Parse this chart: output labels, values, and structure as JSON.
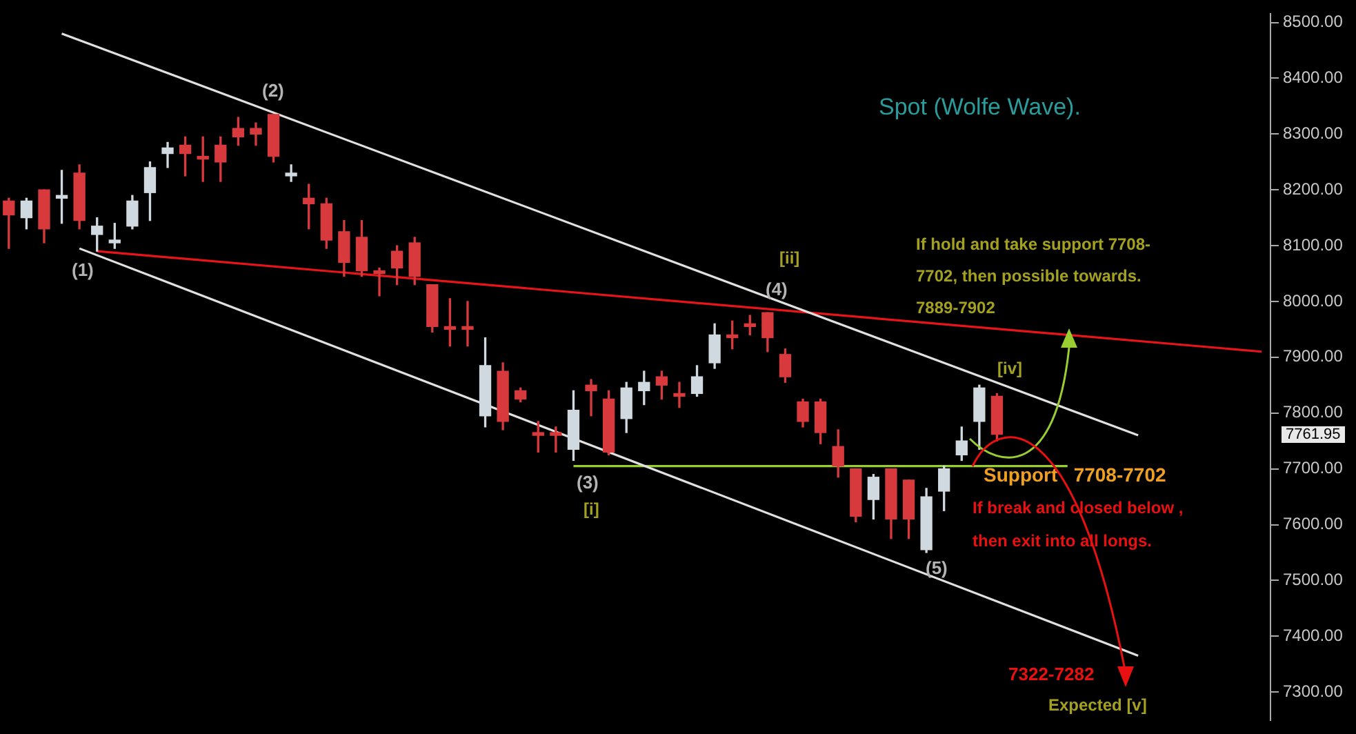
{
  "chart_data": {
    "type": "candlestick",
    "title": "Spot (Wolfe Wave).",
    "categories": [
      null,
      null,
      null,
      null,
      null,
      null,
      null,
      null,
      null,
      null,
      null,
      null,
      null,
      null,
      null,
      null,
      null,
      null,
      null,
      null,
      null,
      null,
      null,
      null,
      null,
      null,
      null,
      null,
      null,
      null,
      null,
      null,
      null,
      null,
      null,
      null,
      null,
      null,
      null,
      null,
      null,
      null,
      null,
      null,
      null,
      null,
      null,
      null,
      null,
      null,
      null,
      null,
      null,
      null,
      null,
      null,
      null,
      null,
      null,
      null,
      null,
      null,
      null,
      null,
      null,
      null,
      null,
      null,
      null,
      null,
      null,
      null
    ],
    "ohlc": [
      [
        8180,
        8185,
        8095,
        8155
      ],
      [
        8150,
        8185,
        8130,
        8180
      ],
      [
        8200,
        8200,
        8105,
        8130
      ],
      [
        8185,
        8235,
        8140,
        8190
      ],
      [
        8230,
        8245,
        8130,
        8145
      ],
      [
        8120,
        8150,
        8090,
        8135
      ],
      [
        8105,
        8140,
        8095,
        8110
      ],
      [
        8135,
        8190,
        8130,
        8180
      ],
      [
        8195,
        8250,
        8145,
        8240
      ],
      [
        8265,
        8285,
        8240,
        8275
      ],
      [
        8280,
        8295,
        8225,
        8265
      ],
      [
        8260,
        8295,
        8215,
        8255
      ],
      [
        8280,
        8295,
        8215,
        8250
      ],
      [
        8310,
        8330,
        8280,
        8295
      ],
      [
        8310,
        8320,
        8280,
        8300
      ],
      [
        8335,
        8335,
        8250,
        8260
      ],
      [
        8225,
        8245,
        8215,
        8230
      ],
      [
        8185,
        8210,
        8130,
        8175
      ],
      [
        8175,
        8185,
        8095,
        8110
      ],
      [
        8125,
        8145,
        8045,
        8070
      ],
      [
        8115,
        8145,
        8045,
        8055
      ],
      [
        8055,
        8060,
        8010,
        8050
      ],
      [
        8090,
        8100,
        8030,
        8060
      ],
      [
        8105,
        8115,
        8030,
        8045
      ],
      [
        8030,
        8030,
        7945,
        7955
      ],
      [
        7955,
        8005,
        7920,
        7950
      ],
      [
        7955,
        8000,
        7920,
        7950
      ],
      [
        7795,
        7935,
        7775,
        7885
      ],
      [
        7875,
        7890,
        7770,
        7785
      ],
      [
        7840,
        7845,
        7820,
        7825
      ],
      [
        7765,
        7785,
        7730,
        7760
      ],
      [
        7765,
        7775,
        7730,
        7760
      ],
      [
        7735,
        7840,
        7715,
        7805
      ],
      [
        7850,
        7860,
        7795,
        7840
      ],
      [
        7825,
        7840,
        7725,
        7730
      ],
      [
        7790,
        7855,
        7765,
        7845
      ],
      [
        7840,
        7875,
        7815,
        7855
      ],
      [
        7865,
        7875,
        7825,
        7850
      ],
      [
        7835,
        7855,
        7810,
        7830
      ],
      [
        7835,
        7885,
        7830,
        7865
      ],
      [
        7890,
        7960,
        7880,
        7940
      ],
      [
        7940,
        7965,
        7915,
        7935
      ],
      [
        7960,
        7975,
        7940,
        7955
      ],
      [
        7980,
        7980,
        7910,
        7935
      ],
      [
        7905,
        7915,
        7855,
        7865
      ],
      [
        7820,
        7825,
        7775,
        7785
      ],
      [
        7820,
        7825,
        7745,
        7765
      ],
      [
        7740,
        7770,
        7685,
        7705
      ],
      [
        7700,
        7700,
        7605,
        7615
      ],
      [
        7645,
        7690,
        7610,
        7685
      ],
      [
        7700,
        7700,
        7575,
        7610
      ],
      [
        7680,
        7680,
        7575,
        7610
      ],
      [
        7555,
        7665,
        7550,
        7650
      ],
      [
        7660,
        7705,
        7625,
        7700
      ],
      [
        7725,
        7775,
        7715,
        7750
      ],
      [
        7785,
        7850,
        7735,
        7845
      ],
      [
        7830,
        7835,
        7750,
        7761.95
      ],
      null,
      null,
      null,
      null,
      null,
      null,
      null,
      null,
      null,
      null,
      null,
      null,
      null,
      null,
      null
    ],
    "colors": [
      "#d8393c",
      "#d0d8e0",
      "#d8393c",
      "#d0d8e0",
      "#d8393c",
      "#d0d8e0",
      "#d0d8e0",
      "#d0d8e0",
      "#d0d8e0",
      "#d0d8e0",
      "#d8393c",
      "#d8393c",
      "#d8393c",
      "#d8393c",
      "#d8393c",
      "#d8393c",
      "#d0d8e0",
      "#d8393c",
      "#d8393c",
      "#d8393c",
      "#d8393c",
      "#d8393c",
      "#d8393c",
      "#d8393c",
      "#d8393c",
      "#d8393c",
      "#d8393c",
      "#d0d8e0",
      "#d8393c",
      "#d8393c",
      "#d8393c",
      "#d8393c",
      "#d0d8e0",
      "#d8393c",
      "#d8393c",
      "#d0d8e0",
      "#d0d8e0",
      "#d8393c",
      "#d8393c",
      "#d0d8e0",
      "#d0d8e0",
      "#d8393c",
      "#d8393c",
      "#d8393c",
      "#d8393c",
      "#d8393c",
      "#d8393c",
      "#d8393c",
      "#d8393c",
      "#d0d8e0",
      "#d8393c",
      "#d8393c",
      "#d0d8e0",
      "#d0d8e0",
      "#d0d8e0",
      "#d0d8e0",
      "#d8393c",
      null,
      null,
      null,
      null,
      null,
      null,
      null,
      null,
      null,
      null,
      null,
      null,
      null,
      null,
      null
    ],
    "series": [
      {
        "type": "line",
        "color": "#e0e0e0",
        "values": [
          null,
          null,
          null,
          8480,
          null,
          null,
          null,
          null,
          null,
          null,
          null,
          null,
          null,
          null,
          null,
          null,
          null,
          null,
          null,
          null,
          null,
          null,
          null,
          null,
          null,
          null,
          null,
          null,
          null,
          null,
          null,
          null,
          null,
          null,
          null,
          null,
          null,
          null,
          null,
          null,
          null,
          null,
          null,
          null,
          null,
          null,
          null,
          null,
          null,
          null,
          null,
          null,
          null,
          null,
          null,
          null,
          null,
          null,
          null,
          null,
          null,
          null,
          null,
          null,
          7760,
          null,
          null,
          null,
          null,
          null,
          null,
          null
        ]
      },
      {
        "type": "line",
        "color": "#e0e0e0",
        "values": [
          null,
          null,
          null,
          null,
          8095,
          null,
          null,
          null,
          null,
          null,
          null,
          null,
          null,
          null,
          null,
          null,
          null,
          null,
          null,
          null,
          null,
          null,
          null,
          null,
          null,
          null,
          null,
          null,
          null,
          null,
          null,
          null,
          null,
          null,
          null,
          null,
          null,
          null,
          null,
          null,
          null,
          null,
          null,
          null,
          null,
          null,
          null,
          null,
          null,
          null,
          null,
          null,
          null,
          null,
          null,
          null,
          null,
          null,
          null,
          null,
          null,
          null,
          null,
          null,
          7365,
          null,
          null,
          null,
          null,
          null,
          null,
          null
        ]
      },
      {
        "type": "line",
        "color": "#e8141a",
        "values": [
          null,
          null,
          null,
          null,
          null,
          8090,
          null,
          null,
          null,
          null,
          null,
          null,
          null,
          null,
          null,
          null,
          null,
          null,
          null,
          null,
          null,
          null,
          null,
          null,
          null,
          null,
          null,
          null,
          null,
          null,
          null,
          null,
          null,
          null,
          null,
          null,
          null,
          null,
          null,
          null,
          null,
          null,
          null,
          null,
          null,
          null,
          null,
          null,
          null,
          null,
          null,
          null,
          null,
          null,
          null,
          null,
          null,
          null,
          null,
          null,
          null,
          null,
          null,
          null,
          null,
          null,
          null,
          null,
          null,
          null,
          null,
          7910
        ]
      },
      {
        "type": "line",
        "color": "#9acd32",
        "values": [
          null,
          null,
          null,
          null,
          null,
          null,
          null,
          null,
          null,
          null,
          null,
          null,
          null,
          null,
          null,
          null,
          null,
          null,
          null,
          null,
          null,
          null,
          null,
          null,
          null,
          null,
          null,
          null,
          null,
          null,
          null,
          null,
          7705,
          null,
          null,
          null,
          null,
          null,
          null,
          null,
          null,
          null,
          null,
          null,
          null,
          null,
          null,
          null,
          null,
          null,
          null,
          null,
          null,
          null,
          null,
          null,
          null,
          null,
          null,
          null,
          7705,
          null,
          null,
          null,
          null,
          null,
          null,
          null,
          null,
          null,
          null,
          null
        ]
      }
    ],
    "ylim": [
      7250,
      8515
    ],
    "yticks": [
      {
        "value": 7300,
        "label": "7300.00"
      },
      {
        "value": 7400,
        "label": "7400.00"
      },
      {
        "value": 7500,
        "label": "7500.00"
      },
      {
        "value": 7600,
        "label": "7600.00"
      },
      {
        "value": 7700,
        "label": "7700.00"
      },
      {
        "value": 7800,
        "label": "7800.00"
      },
      {
        "value": 7900,
        "label": "7900.00"
      },
      {
        "value": 8000,
        "label": "8000.00"
      },
      {
        "value": 8100,
        "label": "8100.00"
      },
      {
        "value": 8200,
        "label": "8200.00"
      },
      {
        "value": 8300,
        "label": "8300.00"
      },
      {
        "value": 8400,
        "label": "8400.00"
      },
      {
        "value": 8500,
        "label": "8500.00"
      }
    ],
    "tick_labels": "y",
    "annotations": [
      "(1)",
      "(2)",
      "(3)",
      "[i]",
      "(4)",
      "[ii]",
      "(5)",
      "[iv]",
      "If hold and take support 7708-\n7702, then possible towards.\n7889-7902",
      "Support   7708-7702",
      "If break and closed below ,\nthen exit into all longs.",
      "7322-7282",
      "Expected [v]",
      "7761.95"
    ]
  }
}
